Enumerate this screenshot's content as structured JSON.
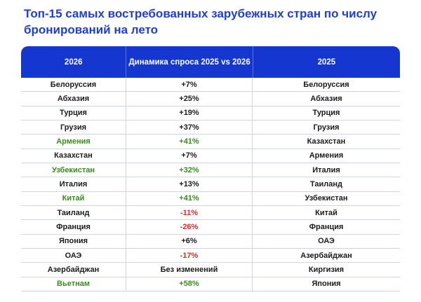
{
  "title": "Топ-15 самых востребованных зарубежных стран по числу бронирований на лето",
  "headers": [
    "2026",
    "Динамика спроса 2025 vs 2026",
    "2025"
  ],
  "colors": {
    "header_bg": "#1537cf",
    "title": "#1f3fd0",
    "green": "#3b8a1f",
    "red": "#d82a2a"
  },
  "rows": [
    {
      "c2026": "Белоруссия",
      "dyn": "+7%",
      "c2025": "Белоруссия",
      "c2026_color": "default",
      "dyn_color": "default"
    },
    {
      "c2026": "Абхазия",
      "dyn": "+25%",
      "c2025": "Абхазия",
      "c2026_color": "default",
      "dyn_color": "default"
    },
    {
      "c2026": "Турция",
      "dyn": "+19%",
      "c2025": "Турция",
      "c2026_color": "default",
      "dyn_color": "default"
    },
    {
      "c2026": "Грузия",
      "dyn": "+37%",
      "c2025": "Грузия",
      "c2026_color": "default",
      "dyn_color": "default"
    },
    {
      "c2026": "Армения",
      "dyn": "+41%",
      "c2025": "Казахстан",
      "c2026_color": "green",
      "dyn_color": "green"
    },
    {
      "c2026": "Казахстан",
      "dyn": "+7%",
      "c2025": "Армения",
      "c2026_color": "default",
      "dyn_color": "default"
    },
    {
      "c2026": "Узбекистан",
      "dyn": "+32%",
      "c2025": "Италия",
      "c2026_color": "green",
      "dyn_color": "green"
    },
    {
      "c2026": "Италия",
      "dyn": "+13%",
      "c2025": "Таиланд",
      "c2026_color": "default",
      "dyn_color": "default"
    },
    {
      "c2026": "Китай",
      "dyn": "+41%",
      "c2025": "Узбекистан",
      "c2026_color": "green",
      "dyn_color": "green"
    },
    {
      "c2026": "Таиланд",
      "dyn": "-11%",
      "c2025": "Китай",
      "c2026_color": "default",
      "dyn_color": "red"
    },
    {
      "c2026": "Франция",
      "dyn": "-26%",
      "c2025": "Франция",
      "c2026_color": "default",
      "dyn_color": "red"
    },
    {
      "c2026": "Япония",
      "dyn": "+6%",
      "c2025": "ОАЭ",
      "c2026_color": "default",
      "dyn_color": "default"
    },
    {
      "c2026": "ОАЭ",
      "dyn": "-17%",
      "c2025": "Азербайджан",
      "c2026_color": "default",
      "dyn_color": "red"
    },
    {
      "c2026": "Азербайджан",
      "dyn": "Без изменений",
      "c2025": "Киргизия",
      "c2026_color": "default",
      "dyn_color": "default"
    },
    {
      "c2026": "Вьетнам",
      "dyn": "+58%",
      "c2025": "Япония",
      "c2026_color": "green",
      "dyn_color": "green"
    }
  ]
}
